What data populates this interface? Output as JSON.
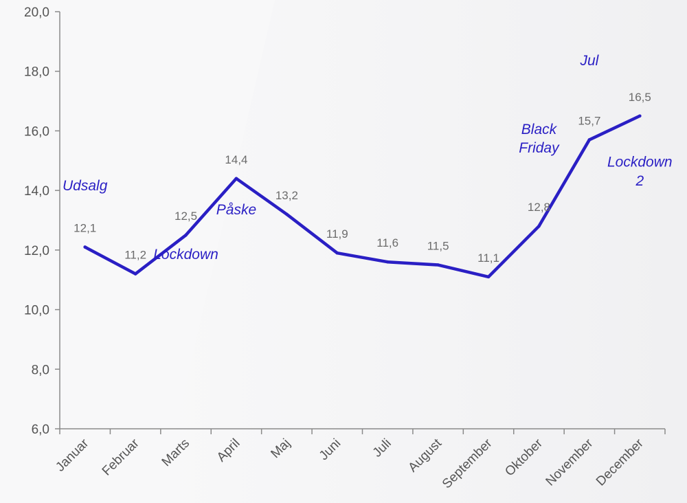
{
  "chart_data": {
    "type": "line",
    "title": "",
    "xlabel": "",
    "ylabel": "",
    "categories": [
      "Januar",
      "Februar",
      "Marts",
      "April",
      "Maj",
      "Juni",
      "Juli",
      "August",
      "September",
      "Oktober",
      "November",
      "December"
    ],
    "series": [
      {
        "values": [
          12.1,
          11.2,
          12.5,
          14.4,
          13.2,
          11.9,
          11.6,
          11.5,
          11.1,
          12.8,
          15.7,
          16.5
        ]
      }
    ],
    "value_labels": [
      "12,1",
      "11,2",
      "12,5",
      "14,4",
      "13,2",
      "11,9",
      "11,6",
      "11,5",
      "11,1",
      "12,8",
      "15,7",
      "16,5"
    ],
    "ylim": [
      6,
      20
    ],
    "yticks": [
      6,
      8,
      10,
      12,
      14,
      16,
      18,
      20
    ],
    "ytick_labels": [
      "6,0",
      "8,0",
      "10,0",
      "12,0",
      "14,0",
      "16,0",
      "18,0",
      "20,0"
    ],
    "grid": false,
    "legend": "none",
    "colors": {
      "line": "#2a1fc4",
      "annotation": "#2a1fc4",
      "axis": "#8a8a8a"
    },
    "annotations": [
      {
        "lines": [
          "Udsalg"
        ],
        "x": "Januar",
        "y": 14.0
      },
      {
        "lines": [
          "Lockdown"
        ],
        "x": "Marts",
        "y": 11.7
      },
      {
        "lines": [
          "Påske"
        ],
        "x": "April",
        "y": 13.2
      },
      {
        "lines": [
          "Black",
          "Friday"
        ],
        "x": "Oktober",
        "y": 15.9
      },
      {
        "lines": [
          "Jul"
        ],
        "x": "November",
        "y": 18.2
      },
      {
        "lines": [
          "Lockdown",
          "2"
        ],
        "x": "December",
        "y": 14.8
      }
    ]
  }
}
